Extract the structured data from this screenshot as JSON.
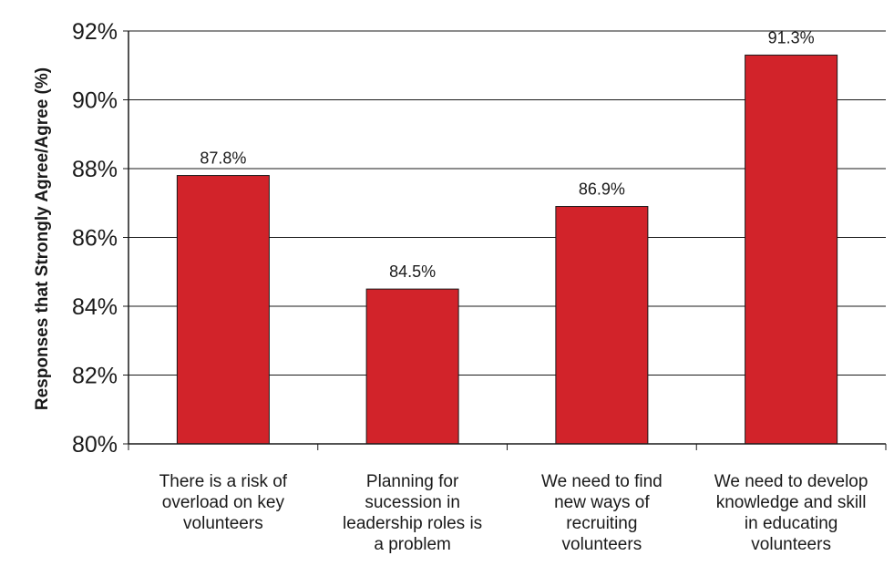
{
  "chart_data": {
    "type": "bar",
    "title": "",
    "xlabel": "",
    "ylabel": "Responses that Strongly Agree/Agree (%)",
    "ylim": [
      80,
      92
    ],
    "yticks": [
      {
        "value": 80,
        "label": "80%"
      },
      {
        "value": 82,
        "label": "82%"
      },
      {
        "value": 84,
        "label": "84%"
      },
      {
        "value": 86,
        "label": "86%"
      },
      {
        "value": 88,
        "label": "88%"
      },
      {
        "value": 90,
        "label": "90%"
      },
      {
        "value": 92,
        "label": "92%"
      }
    ],
    "grid": true,
    "legend": "none",
    "bar_color": "#d2232a",
    "categories": [
      [
        "There is a risk of",
        "overload on key",
        "volunteers"
      ],
      [
        "Planning for",
        "sucession in",
        "leadership roles is",
        "a problem"
      ],
      [
        "We need to find",
        "new ways of",
        "recruiting",
        "volunteers"
      ],
      [
        "We need to develop",
        "knowledge and skill",
        "in educating",
        "volunteers"
      ]
    ],
    "values": [
      87.8,
      84.5,
      86.9,
      91.3
    ],
    "value_labels": [
      "87.8%",
      "84.5%",
      "86.9%",
      "91.3%"
    ]
  }
}
